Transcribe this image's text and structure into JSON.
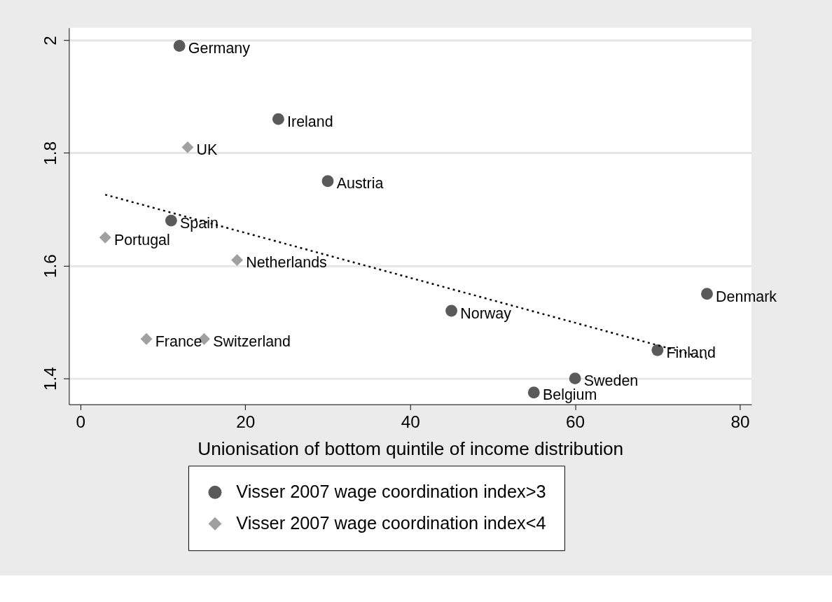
{
  "chart_data": {
    "type": "scatter",
    "xlabel": "Unionisation of bottom quintile of income distribution",
    "xlim": [
      -1.4,
      81.4
    ],
    "xticks": [
      0,
      20,
      40,
      60,
      80
    ],
    "ylim": [
      1.354,
      2.022
    ],
    "yticks": [
      1.4,
      1.6,
      1.8,
      2
    ],
    "grid": "y",
    "legend": "bottom",
    "series": [
      {
        "name": "Visser 2007 wage coordination index>3",
        "color": "#5a5a5a",
        "marker": "circle",
        "x": [
          12,
          24,
          30,
          11,
          76,
          45,
          70,
          60,
          55
        ],
        "values": [
          1.99,
          1.86,
          1.75,
          1.68,
          1.55,
          1.52,
          1.45,
          1.4,
          1.375
        ]
      },
      {
        "name": "Visser 2007 wage coordination index<4",
        "color": "#a0a0a0",
        "marker": "diamond",
        "x": [
          13,
          3,
          19,
          8,
          15
        ],
        "values": [
          1.81,
          1.65,
          1.61,
          1.47,
          1.47
        ]
      },
      {
        "type": "line",
        "color": "#000000",
        "line_style": "dotted",
        "marker": "none",
        "x": [
          3,
          76
        ],
        "values": [
          1.726,
          1.435
        ]
      }
    ],
    "annotations": [
      {
        "text": "Germany",
        "x": 12,
        "y": 1.99
      },
      {
        "text": "Ireland",
        "x": 24,
        "y": 1.86
      },
      {
        "text": "UK",
        "x": 13,
        "y": 1.81
      },
      {
        "text": "Austria",
        "x": 30,
        "y": 1.75
      },
      {
        "text": "Spain",
        "x": 11,
        "y": 1.68
      },
      {
        "text": "Portugal",
        "x": 3,
        "y": 1.65
      },
      {
        "text": "Netherlands",
        "x": 19,
        "y": 1.61
      },
      {
        "text": "Denmark",
        "x": 76,
        "y": 1.55
      },
      {
        "text": "Norway",
        "x": 45,
        "y": 1.52
      },
      {
        "text": "France",
        "x": 8,
        "y": 1.47
      },
      {
        "text": "Switzerland",
        "x": 15,
        "y": 1.47
      },
      {
        "text": "Finland",
        "x": 70,
        "y": 1.45
      },
      {
        "text": "Sweden",
        "x": 60,
        "y": 1.4
      },
      {
        "text": "Belgium",
        "x": 55,
        "y": 1.375
      }
    ]
  }
}
